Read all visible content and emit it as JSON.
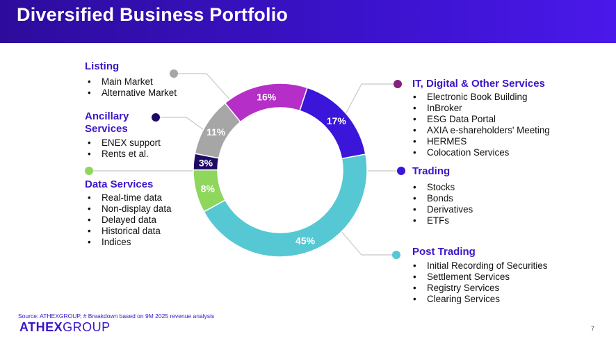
{
  "header": {
    "title": "Diversified Business Portfolio"
  },
  "chart_data": {
    "type": "pie",
    "variant": "donut",
    "slices": [
      {
        "label": "Listing",
        "value": 11,
        "display": "11%",
        "color": "#a6a6a6"
      },
      {
        "label": "IT, Digital & Other Services",
        "value": 16,
        "display": "16%",
        "color": "#b52ec7"
      },
      {
        "label": "Trading",
        "value": 17,
        "display": "17%",
        "color": "#3b15d9"
      },
      {
        "label": "Post Trading",
        "value": 45,
        "display": "45%",
        "color": "#55c8d3"
      },
      {
        "label": "Data Services",
        "value": 8,
        "display": "8%",
        "color": "#8ed65c"
      },
      {
        "label": "Ancillary Services",
        "value": 3,
        "display": "3%",
        "color": "#1e0a66"
      }
    ]
  },
  "groups": {
    "listing": {
      "title": "Listing",
      "items": [
        "Main Market",
        "Alternative Market"
      ]
    },
    "ancillary": {
      "title_line1": "Ancillary",
      "title_line2": "Services",
      "items": [
        "ENEX support",
        "Rents et al."
      ]
    },
    "data": {
      "title": "Data Services",
      "items": [
        "Real-time data",
        "Non-display data",
        "Delayed data",
        "Historical data",
        "Indices"
      ]
    },
    "it": {
      "title": "IT, Digital & Other Services",
      "items": [
        "Electronic Book Building",
        "InBroker",
        "ESG Data Portal",
        "AXIA e-shareholders' Meeting",
        "HERMES",
        "Colocation Services"
      ]
    },
    "trading": {
      "title": "Trading",
      "items": [
        "Stocks",
        "Bonds",
        "Derivatives",
        "ETFs"
      ]
    },
    "post": {
      "title": "Post Trading",
      "items": [
        "Initial Recording of Securities",
        "Settlement Services",
        "Registry Services",
        "Clearing Services"
      ]
    }
  },
  "footer": {
    "source": "Source: ATHEXGROUP, # Breakdown based on 9M 2025 revenue analysis",
    "logo_a": "ATHEX",
    "logo_b": "GROUP",
    "page": "7"
  }
}
